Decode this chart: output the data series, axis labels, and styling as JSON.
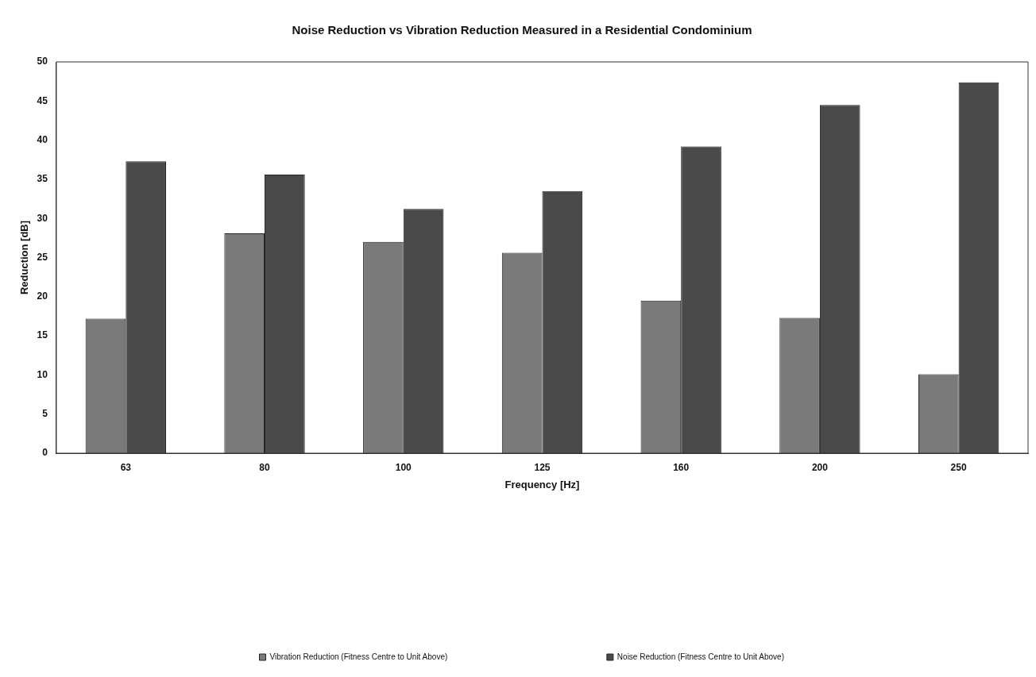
{
  "chart_data": {
    "type": "bar",
    "title": "Noise Reduction vs Vibration Reduction Measured in a Residential Condominium",
    "xlabel": "Frequency [Hz]",
    "ylabel": "Reduction [dB]",
    "categories": [
      "63",
      "80",
      "100",
      "125",
      "160",
      "200",
      "250"
    ],
    "series": [
      {
        "name": "Vibration Reduction (Fitness Centre to Unit Above)",
        "color": "#7a7a7a",
        "values": [
          17.2,
          28.1,
          27.0,
          25.6,
          19.5,
          17.3,
          10.1
        ]
      },
      {
        "name": "Noise Reduction (Fitness Centre to Unit Above)",
        "color": "#4a4a4a",
        "values": [
          37.3,
          35.6,
          31.2,
          33.5,
          39.2,
          44.5,
          47.4
        ]
      }
    ],
    "ylim": [
      0,
      50
    ],
    "yticks": [
      0,
      5,
      10,
      15,
      20,
      25,
      30,
      35,
      40,
      45,
      50
    ],
    "grid": false,
    "legend": "bottom"
  }
}
